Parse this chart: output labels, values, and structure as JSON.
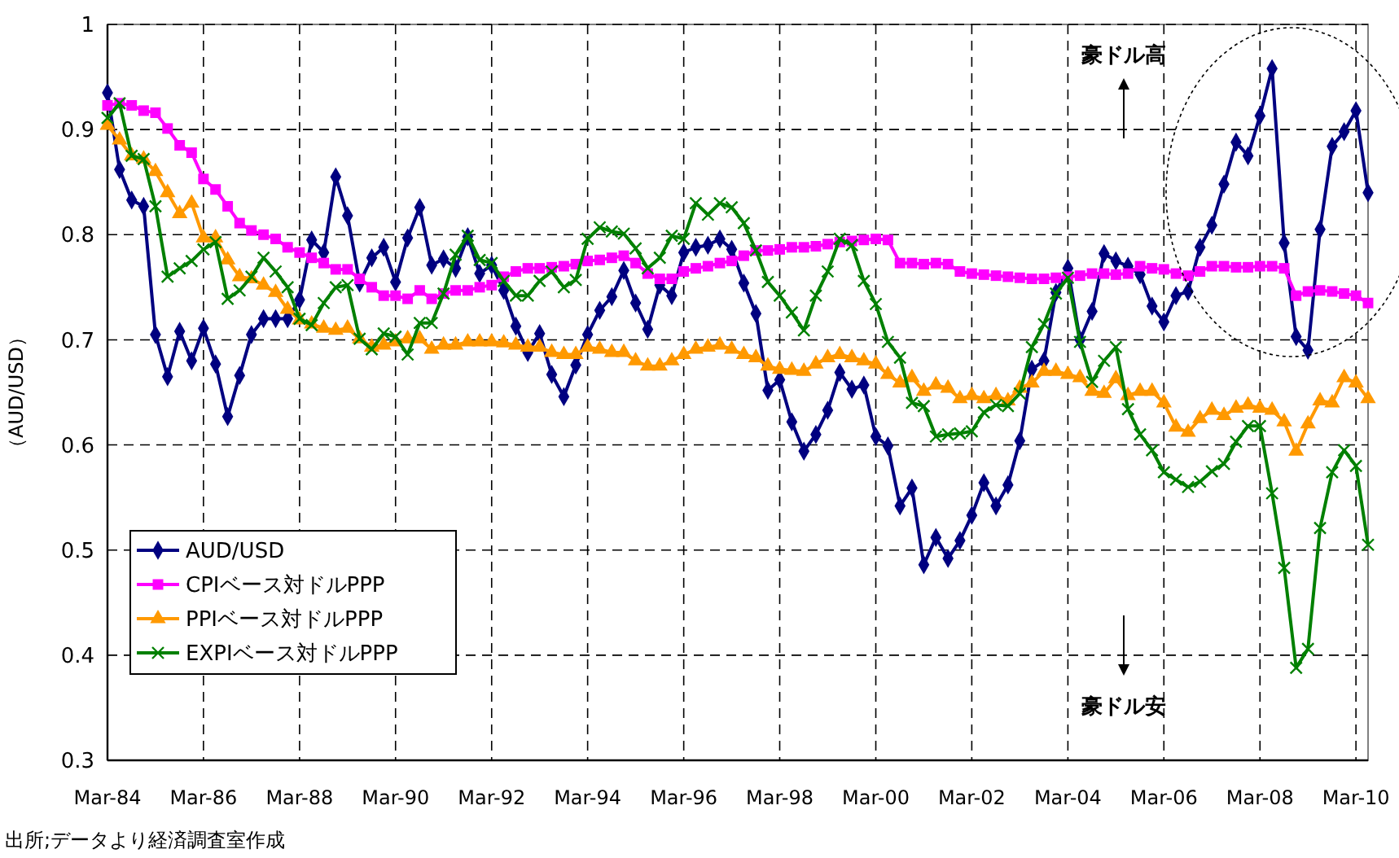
{
  "chart_data": {
    "type": "line",
    "ylabel": "（AUD/USD）",
    "x": [
      "1984-03",
      "1984-06",
      "1984-09",
      "1984-12",
      "1985-03",
      "1985-06",
      "1985-09",
      "1985-12",
      "1986-03",
      "1986-06",
      "1986-09",
      "1986-12",
      "1987-03",
      "1987-06",
      "1987-09",
      "1987-12",
      "1988-03",
      "1988-06",
      "1988-09",
      "1988-12",
      "1989-03",
      "1989-06",
      "1989-09",
      "1989-12",
      "1990-03",
      "1990-06",
      "1990-09",
      "1990-12",
      "1991-03",
      "1991-06",
      "1991-09",
      "1991-12",
      "1992-03",
      "1992-06",
      "1992-09",
      "1992-12",
      "1993-03",
      "1993-06",
      "1993-09",
      "1993-12",
      "1994-03",
      "1994-06",
      "1994-09",
      "1994-12",
      "1995-03",
      "1995-06",
      "1995-09",
      "1995-12",
      "1996-03",
      "1996-06",
      "1996-09",
      "1996-12",
      "1997-03",
      "1997-06",
      "1997-09",
      "1997-12",
      "1998-03",
      "1998-06",
      "1998-09",
      "1998-12",
      "1999-03",
      "1999-06",
      "1999-09",
      "1999-12",
      "2000-03",
      "2000-06",
      "2000-09",
      "2000-12",
      "2001-03",
      "2001-06",
      "2001-09",
      "2001-12",
      "2002-03",
      "2002-06",
      "2002-09",
      "2002-12",
      "2003-03",
      "2003-06",
      "2003-09",
      "2003-12",
      "2004-03",
      "2004-06",
      "2004-09",
      "2004-12",
      "2005-03",
      "2005-06",
      "2005-09",
      "2005-12",
      "2006-03",
      "2006-06",
      "2006-09",
      "2006-12",
      "2007-03",
      "2007-06",
      "2007-09",
      "2007-12",
      "2008-03",
      "2008-06",
      "2008-09",
      "2008-12",
      "2009-03",
      "2009-06",
      "2009-09",
      "2009-12",
      "2010-03",
      "2010-06"
    ],
    "series": [
      {
        "name": "AUD/USD",
        "color": "#000080",
        "marker": "diamond",
        "values": [
          0.935,
          0.862,
          0.833,
          0.827,
          0.705,
          0.665,
          0.708,
          0.68,
          0.711,
          0.677,
          0.627,
          0.666,
          0.705,
          0.72,
          0.72,
          0.72,
          0.738,
          0.795,
          0.783,
          0.855,
          0.818,
          0.754,
          0.778,
          0.788,
          0.755,
          0.797,
          0.826,
          0.771,
          0.777,
          0.768,
          0.798,
          0.763,
          0.771,
          0.747,
          0.713,
          0.688,
          0.706,
          0.667,
          0.646,
          0.676,
          0.705,
          0.728,
          0.741,
          0.766,
          0.735,
          0.71,
          0.752,
          0.742,
          0.783,
          0.788,
          0.79,
          0.796,
          0.786,
          0.754,
          0.725,
          0.652,
          0.662,
          0.622,
          0.594,
          0.61,
          0.633,
          0.669,
          0.653,
          0.657,
          0.608,
          0.599,
          0.542,
          0.559,
          0.486,
          0.512,
          0.492,
          0.509,
          0.533,
          0.564,
          0.542,
          0.562,
          0.604,
          0.672,
          0.68,
          0.745,
          0.768,
          0.7,
          0.727,
          0.782,
          0.775,
          0.77,
          0.762,
          0.732,
          0.717,
          0.742,
          0.746,
          0.788,
          0.809,
          0.848,
          0.888,
          0.875,
          0.913,
          0.958,
          0.792,
          0.703,
          0.69,
          0.805,
          0.884,
          0.898,
          0.918,
          0.84
        ]
      },
      {
        "name": "CPIベース対ドルPPP",
        "color": "#ff00ff",
        "marker": "square",
        "values": [
          0.923,
          0.925,
          0.923,
          0.918,
          0.916,
          0.901,
          0.885,
          0.878,
          0.853,
          0.843,
          0.827,
          0.811,
          0.804,
          0.8,
          0.796,
          0.788,
          0.783,
          0.778,
          0.773,
          0.767,
          0.767,
          0.758,
          0.75,
          0.742,
          0.742,
          0.739,
          0.747,
          0.739,
          0.744,
          0.747,
          0.747,
          0.75,
          0.752,
          0.76,
          0.765,
          0.768,
          0.768,
          0.769,
          0.77,
          0.772,
          0.775,
          0.776,
          0.778,
          0.78,
          0.773,
          0.763,
          0.758,
          0.758,
          0.765,
          0.768,
          0.77,
          0.773,
          0.775,
          0.78,
          0.785,
          0.785,
          0.786,
          0.788,
          0.788,
          0.789,
          0.791,
          0.793,
          0.794,
          0.795,
          0.796,
          0.795,
          0.773,
          0.773,
          0.772,
          0.773,
          0.772,
          0.765,
          0.763,
          0.762,
          0.761,
          0.76,
          0.759,
          0.758,
          0.758,
          0.759,
          0.76,
          0.761,
          0.763,
          0.763,
          0.762,
          0.763,
          0.77,
          0.768,
          0.767,
          0.763,
          0.761,
          0.765,
          0.77,
          0.77,
          0.769,
          0.769,
          0.77,
          0.77,
          0.768,
          0.742,
          0.746,
          0.747,
          0.746,
          0.744,
          0.742,
          0.735
        ]
      },
      {
        "name": "PPIベース対ドルPPP",
        "color": "#ff9900",
        "marker": "triangle",
        "values": [
          0.904,
          0.89,
          0.875,
          0.872,
          0.86,
          0.84,
          0.82,
          0.83,
          0.797,
          0.797,
          0.776,
          0.76,
          0.758,
          0.752,
          0.745,
          0.729,
          0.719,
          0.715,
          0.711,
          0.709,
          0.711,
          0.701,
          0.693,
          0.695,
          0.698,
          0.701,
          0.701,
          0.691,
          0.695,
          0.695,
          0.698,
          0.698,
          0.698,
          0.697,
          0.695,
          0.693,
          0.693,
          0.688,
          0.686,
          0.686,
          0.693,
          0.691,
          0.688,
          0.688,
          0.68,
          0.675,
          0.675,
          0.68,
          0.686,
          0.691,
          0.693,
          0.695,
          0.691,
          0.686,
          0.683,
          0.675,
          0.672,
          0.671,
          0.67,
          0.677,
          0.683,
          0.686,
          0.683,
          0.68,
          0.677,
          0.667,
          0.659,
          0.664,
          0.651,
          0.657,
          0.654,
          0.644,
          0.647,
          0.644,
          0.647,
          0.642,
          0.654,
          0.659,
          0.67,
          0.67,
          0.667,
          0.664,
          0.651,
          0.649,
          0.663,
          0.647,
          0.651,
          0.651,
          0.64,
          0.617,
          0.612,
          0.625,
          0.633,
          0.628,
          0.635,
          0.638,
          0.635,
          0.633,
          0.622,
          0.594,
          0.62,
          0.642,
          0.64,
          0.664,
          0.659,
          0.644
        ]
      },
      {
        "name": "EXPIベース対ドルPPP",
        "color": "#008000",
        "marker": "cross",
        "values": [
          0.911,
          0.925,
          0.875,
          0.872,
          0.827,
          0.76,
          0.768,
          0.775,
          0.786,
          0.793,
          0.739,
          0.747,
          0.76,
          0.778,
          0.765,
          0.75,
          0.72,
          0.714,
          0.735,
          0.75,
          0.752,
          0.701,
          0.691,
          0.706,
          0.703,
          0.686,
          0.716,
          0.716,
          0.744,
          0.781,
          0.799,
          0.776,
          0.773,
          0.756,
          0.742,
          0.742,
          0.756,
          0.765,
          0.75,
          0.757,
          0.796,
          0.807,
          0.803,
          0.801,
          0.787,
          0.768,
          0.778,
          0.799,
          0.796,
          0.83,
          0.819,
          0.83,
          0.826,
          0.811,
          0.785,
          0.755,
          0.742,
          0.726,
          0.709,
          0.742,
          0.765,
          0.796,
          0.79,
          0.756,
          0.734,
          0.698,
          0.683,
          0.64,
          0.637,
          0.608,
          0.61,
          0.611,
          0.613,
          0.631,
          0.638,
          0.637,
          0.649,
          0.693,
          0.715,
          0.744,
          0.759,
          0.698,
          0.66,
          0.68,
          0.693,
          0.634,
          0.61,
          0.595,
          0.574,
          0.567,
          0.56,
          0.565,
          0.575,
          0.582,
          0.603,
          0.618,
          0.618,
          0.554,
          0.483,
          0.388,
          0.406,
          0.521,
          0.574,
          0.595,
          0.58,
          0.505
        ]
      }
    ],
    "xlim": [
      "1984-03",
      "2010-06"
    ],
    "xticks": [
      {
        "value": "1984-03",
        "label": "Mar-84"
      },
      {
        "value": "1986-03",
        "label": "Mar-86"
      },
      {
        "value": "1988-03",
        "label": "Mar-88"
      },
      {
        "value": "1990-03",
        "label": "Mar-90"
      },
      {
        "value": "1992-03",
        "label": "Mar-92"
      },
      {
        "value": "1994-03",
        "label": "Mar-94"
      },
      {
        "value": "1996-03",
        "label": "Mar-96"
      },
      {
        "value": "1998-03",
        "label": "Mar-98"
      },
      {
        "value": "2000-03",
        "label": "Mar-00"
      },
      {
        "value": "2002-03",
        "label": "Mar-02"
      },
      {
        "value": "2004-03",
        "label": "Mar-04"
      },
      {
        "value": "2006-03",
        "label": "Mar-06"
      },
      {
        "value": "2008-03",
        "label": "Mar-08"
      },
      {
        "value": "2010-03",
        "label": "Mar-10"
      }
    ],
    "ylim": [
      0.3,
      1
    ],
    "yticks": [
      0.3,
      0.4,
      0.5,
      0.6,
      0.7,
      0.8,
      0.9,
      1
    ],
    "grid": true,
    "legend": "bottom left",
    "annotations": [
      "豪ドル高",
      "豪ドル安",
      "出所;データより経済調査室作成"
    ]
  }
}
